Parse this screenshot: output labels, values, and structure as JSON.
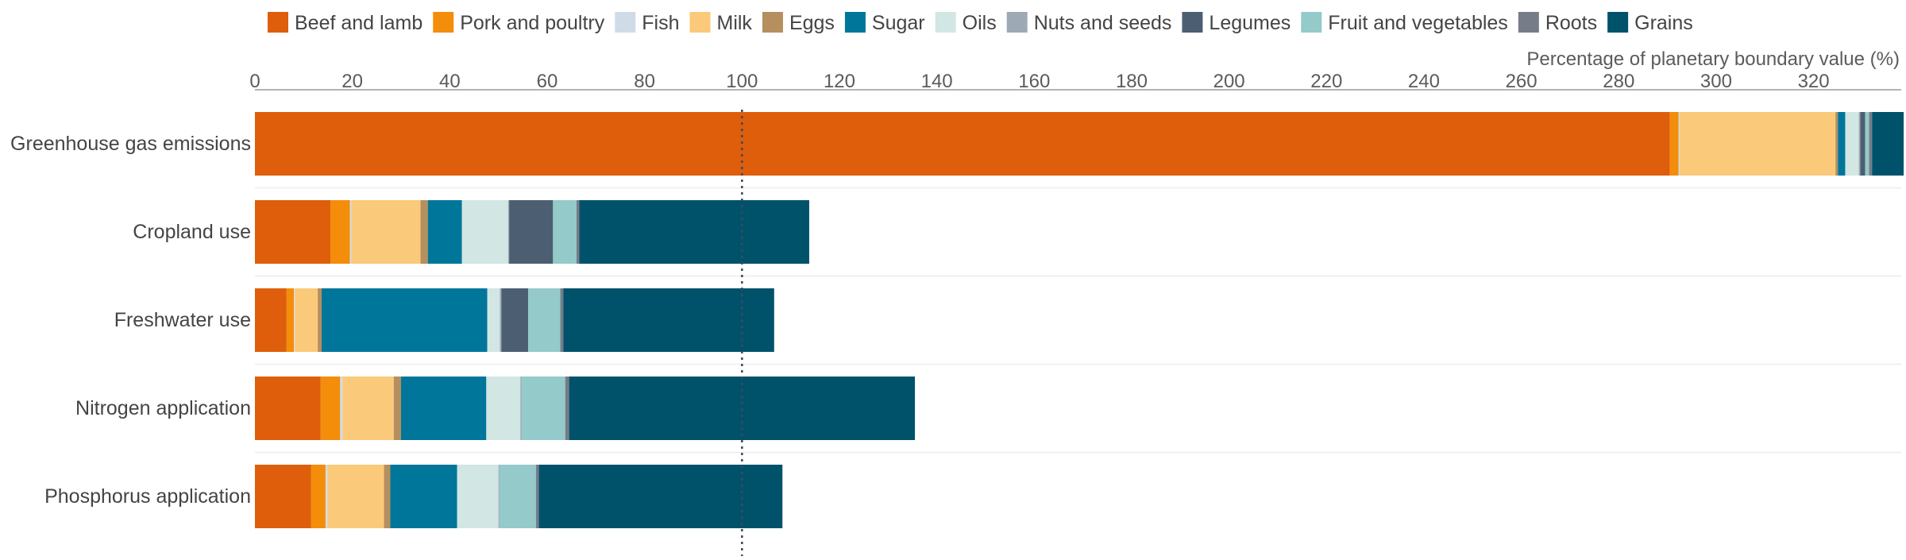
{
  "chart_data": {
    "type": "bar",
    "orientation": "horizontal",
    "stacked": true,
    "title": "",
    "xlabel": "Percentage of planetary boundary value (%)",
    "ylabel": "",
    "xlim": [
      0,
      338
    ],
    "xticks": [
      0,
      20,
      40,
      60,
      80,
      100,
      120,
      140,
      160,
      180,
      200,
      220,
      240,
      260,
      280,
      300,
      320
    ],
    "reference_line": {
      "value": 100,
      "style": "dotted"
    },
    "grid": "horizontal lines between categories",
    "legend_position": "top",
    "categories": [
      "Greenhouse gas emissions",
      "Cropland use",
      "Freshwater use",
      "Nitrogen application",
      "Phosphorus application"
    ],
    "series": [
      {
        "name": "Beef and lamb",
        "color": "#de5e0c",
        "values": [
          290.5,
          15.5,
          6.5,
          13.5,
          11.5
        ]
      },
      {
        "name": "Pork and poultry",
        "color": "#f48d0a",
        "values": [
          1.8,
          4,
          1.5,
          4,
          3
        ]
      },
      {
        "name": "Fish",
        "color": "#cfdce8",
        "values": [
          0.2,
          0.3,
          0.2,
          0.5,
          0.4
        ]
      },
      {
        "name": "Milk",
        "color": "#fbc97a",
        "values": [
          32,
          14.2,
          4.7,
          10.5,
          11.6
        ]
      },
      {
        "name": "Eggs",
        "color": "#b68f5f",
        "values": [
          0.5,
          1.5,
          0.8,
          1.5,
          1.3
        ]
      },
      {
        "name": "Sugar",
        "color": "#00769a",
        "values": [
          1.5,
          7,
          34,
          17.5,
          13.7
        ]
      },
      {
        "name": "Oils",
        "color": "#d2e6e4",
        "values": [
          2.8,
          9.5,
          2.6,
          7,
          8.5
        ]
      },
      {
        "name": "Nuts and seeds",
        "color": "#9daab5",
        "values": [
          0.3,
          0.2,
          0.3,
          0.2,
          0.2
        ]
      },
      {
        "name": "Legumes",
        "color": "#4c5f72",
        "values": [
          1,
          9,
          5.5,
          0,
          0
        ]
      },
      {
        "name": "Fruit and vegetables",
        "color": "#94cac9",
        "values": [
          0.8,
          4.8,
          6.6,
          9,
          7.5
        ]
      },
      {
        "name": "Roots",
        "color": "#767c88",
        "values": [
          0.6,
          0.6,
          0.6,
          0.8,
          0.6
        ]
      },
      {
        "name": "Grains",
        "color": "#00526b",
        "values": [
          6.5,
          47.2,
          43.3,
          71,
          50
        ]
      }
    ]
  }
}
